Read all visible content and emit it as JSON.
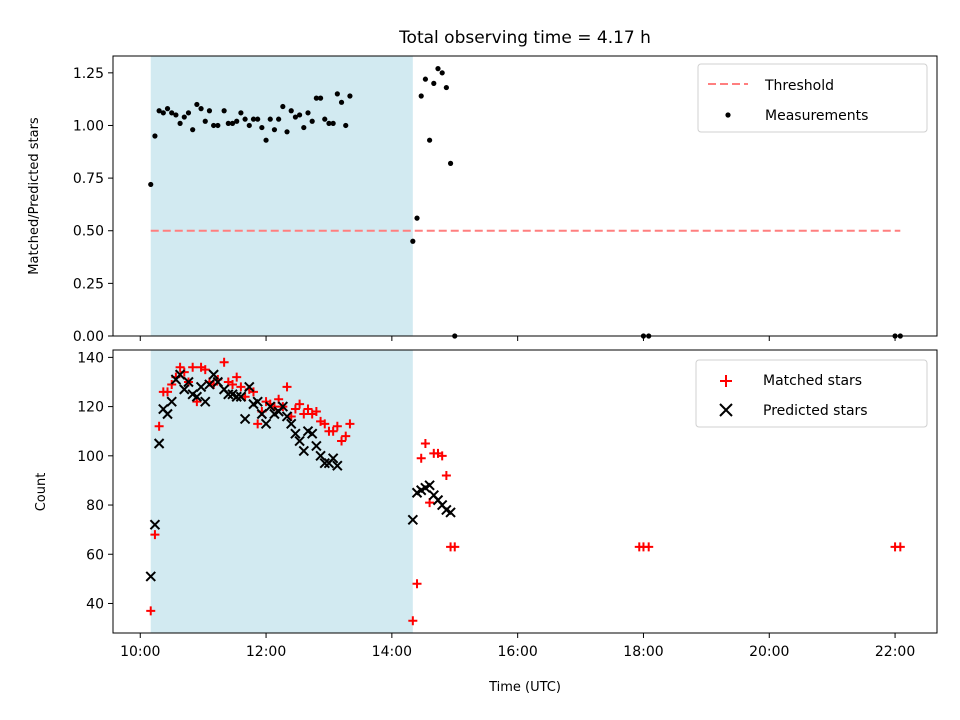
{
  "title": "Total observing time = 4.17 h",
  "chart_data": [
    {
      "type": "scatter",
      "ylabel": "Matched/Predicted stars",
      "xlim": [
        "09:34",
        "22:40"
      ],
      "ylim": [
        0,
        1.33
      ],
      "yticks": [
        0,
        0.25,
        0.5,
        0.75,
        1.0,
        1.25
      ],
      "ytick_labels": [
        "0.00",
        "0.25",
        "0.50",
        "0.75",
        "1.00",
        "1.25"
      ],
      "shaded_span": [
        "10:10",
        "14:20"
      ],
      "legend_position": "upper right",
      "threshold": {
        "name": "Threshold",
        "value": 0.5,
        "x": [
          "10:10",
          "22:05"
        ],
        "color": "#ff7f7f"
      },
      "series": [
        {
          "name": "Measurements",
          "color": "#000000",
          "points": [
            [
              "10:10",
              0.72
            ],
            [
              "10:14",
              0.95
            ],
            [
              "10:18",
              1.07
            ],
            [
              "10:22",
              1.06
            ],
            [
              "10:26",
              1.08
            ],
            [
              "10:30",
              1.06
            ],
            [
              "10:34",
              1.05
            ],
            [
              "10:38",
              1.01
            ],
            [
              "10:42",
              1.04
            ],
            [
              "10:46",
              1.06
            ],
            [
              "10:50",
              0.98
            ],
            [
              "10:54",
              1.1
            ],
            [
              "10:58",
              1.08
            ],
            [
              "11:02",
              1.02
            ],
            [
              "11:06",
              1.07
            ],
            [
              "11:10",
              1.0
            ],
            [
              "11:14",
              1.0
            ],
            [
              "11:20",
              1.07
            ],
            [
              "11:24",
              1.01
            ],
            [
              "11:28",
              1.01
            ],
            [
              "11:32",
              1.02
            ],
            [
              "11:36",
              1.06
            ],
            [
              "11:40",
              1.03
            ],
            [
              "11:44",
              1.0
            ],
            [
              "11:48",
              1.03
            ],
            [
              "11:52",
              1.03
            ],
            [
              "11:56",
              0.99
            ],
            [
              "12:00",
              0.93
            ],
            [
              "12:04",
              1.03
            ],
            [
              "12:08",
              0.98
            ],
            [
              "12:12",
              1.03
            ],
            [
              "12:16",
              1.09
            ],
            [
              "12:20",
              0.97
            ],
            [
              "12:24",
              1.07
            ],
            [
              "12:28",
              1.04
            ],
            [
              "12:32",
              1.05
            ],
            [
              "12:36",
              0.99
            ],
            [
              "12:40",
              1.06
            ],
            [
              "12:44",
              1.02
            ],
            [
              "12:48",
              1.13
            ],
            [
              "12:52",
              1.13
            ],
            [
              "12:56",
              1.03
            ],
            [
              "13:00",
              1.01
            ],
            [
              "13:04",
              1.01
            ],
            [
              "13:08",
              1.15
            ],
            [
              "13:12",
              1.11
            ],
            [
              "13:16",
              1.0
            ],
            [
              "13:20",
              1.14
            ],
            [
              "14:20",
              0.45
            ],
            [
              "14:24",
              0.56
            ],
            [
              "14:28",
              1.14
            ],
            [
              "14:32",
              1.22
            ],
            [
              "14:36",
              0.93
            ],
            [
              "14:40",
              1.2
            ],
            [
              "14:44",
              1.27
            ],
            [
              "14:48",
              1.25
            ],
            [
              "14:52",
              1.18
            ],
            [
              "14:56",
              0.82
            ],
            [
              "15:00",
              0.0
            ],
            [
              "18:00",
              0.0
            ],
            [
              "18:05",
              0.0
            ],
            [
              "22:00",
              0.0
            ],
            [
              "22:05",
              0.0
            ]
          ]
        }
      ]
    },
    {
      "type": "scatter",
      "xlabel": "Time (UTC)",
      "ylabel": "Count",
      "xlim": [
        "09:34",
        "22:40"
      ],
      "ylim": [
        28,
        143
      ],
      "yticks": [
        40,
        60,
        80,
        100,
        120,
        140
      ],
      "xticks": [
        "10:00",
        "12:00",
        "14:00",
        "16:00",
        "18:00",
        "20:00",
        "22:00"
      ],
      "shaded_span": [
        "10:10",
        "14:20"
      ],
      "legend_position": "upper right",
      "series": [
        {
          "name": "Matched stars",
          "color": "#ff0000",
          "marker": "plus",
          "points": [
            [
              "10:10",
              37
            ],
            [
              "10:14",
              68
            ],
            [
              "10:18",
              112
            ],
            [
              "10:22",
              126
            ],
            [
              "10:26",
              126
            ],
            [
              "10:30",
              129
            ],
            [
              "10:34",
              132
            ],
            [
              "10:38",
              136
            ],
            [
              "10:42",
              134
            ],
            [
              "10:46",
              130
            ],
            [
              "10:50",
              136
            ],
            [
              "10:54",
              122
            ],
            [
              "10:58",
              136
            ],
            [
              "11:02",
              135
            ],
            [
              "11:06",
              130
            ],
            [
              "11:10",
              129
            ],
            [
              "11:14",
              131
            ],
            [
              "11:20",
              138
            ],
            [
              "11:24",
              130
            ],
            [
              "11:28",
              129
            ],
            [
              "11:32",
              132
            ],
            [
              "11:36",
              128
            ],
            [
              "11:40",
              124
            ],
            [
              "11:44",
              127
            ],
            [
              "11:48",
              126
            ],
            [
              "11:52",
              113
            ],
            [
              "11:56",
              118
            ],
            [
              "12:00",
              122
            ],
            [
              "12:04",
              121
            ],
            [
              "12:08",
              120
            ],
            [
              "12:12",
              123
            ],
            [
              "12:16",
              120
            ],
            [
              "12:20",
              128
            ],
            [
              "12:24",
              116
            ],
            [
              "12:28",
              119
            ],
            [
              "12:32",
              121
            ],
            [
              "12:36",
              117
            ],
            [
              "12:40",
              119
            ],
            [
              "12:44",
              117
            ],
            [
              "12:48",
              118
            ],
            [
              "12:52",
              114
            ],
            [
              "12:56",
              113
            ],
            [
              "13:00",
              110
            ],
            [
              "13:04",
              110
            ],
            [
              "13:08",
              112
            ],
            [
              "13:12",
              106
            ],
            [
              "13:16",
              108
            ],
            [
              "13:20",
              113
            ],
            [
              "14:20",
              33
            ],
            [
              "14:24",
              48
            ],
            [
              "14:28",
              99
            ],
            [
              "14:32",
              105
            ],
            [
              "14:36",
              81
            ],
            [
              "14:40",
              101
            ],
            [
              "14:44",
              101
            ],
            [
              "14:48",
              100
            ],
            [
              "14:52",
              92
            ],
            [
              "14:56",
              63
            ],
            [
              "15:00",
              63
            ],
            [
              "17:56",
              63
            ],
            [
              "18:00",
              63
            ],
            [
              "18:05",
              63
            ],
            [
              "22:00",
              63
            ],
            [
              "22:05",
              63
            ]
          ]
        },
        {
          "name": "Predicted stars",
          "color": "#000000",
          "marker": "x",
          "points": [
            [
              "10:10",
              51
            ],
            [
              "10:14",
              72
            ],
            [
              "10:18",
              105
            ],
            [
              "10:22",
              119
            ],
            [
              "10:26",
              117
            ],
            [
              "10:30",
              122
            ],
            [
              "10:34",
              131
            ],
            [
              "10:38",
              133
            ],
            [
              "10:42",
              127
            ],
            [
              "10:46",
              130
            ],
            [
              "10:50",
              125
            ],
            [
              "10:54",
              124
            ],
            [
              "10:58",
              128
            ],
            [
              "11:02",
              122
            ],
            [
              "11:06",
              129
            ],
            [
              "11:10",
              133
            ],
            [
              "11:14",
              130
            ],
            [
              "11:20",
              127
            ],
            [
              "11:24",
              125
            ],
            [
              "11:28",
              125
            ],
            [
              "11:32",
              124
            ],
            [
              "11:36",
              124
            ],
            [
              "11:40",
              115
            ],
            [
              "11:44",
              128
            ],
            [
              "11:48",
              121
            ],
            [
              "11:52",
              122
            ],
            [
              "11:56",
              117
            ],
            [
              "12:00",
              113
            ],
            [
              "12:04",
              120
            ],
            [
              "12:08",
              117
            ],
            [
              "12:12",
              118
            ],
            [
              "12:16",
              120
            ],
            [
              "12:20",
              116
            ],
            [
              "12:24",
              113
            ],
            [
              "12:28",
              109
            ],
            [
              "12:32",
              106
            ],
            [
              "12:36",
              102
            ],
            [
              "12:40",
              110
            ],
            [
              "12:44",
              109
            ],
            [
              "12:48",
              104
            ],
            [
              "12:52",
              100
            ],
            [
              "12:56",
              97
            ],
            [
              "13:00",
              97
            ],
            [
              "13:04",
              99
            ],
            [
              "13:08",
              96
            ],
            [
              "14:20",
              74
            ],
            [
              "14:24",
              85
            ],
            [
              "14:28",
              86
            ],
            [
              "14:32",
              87
            ],
            [
              "14:36",
              88
            ],
            [
              "14:40",
              84
            ],
            [
              "14:44",
              82
            ],
            [
              "14:48",
              80
            ],
            [
              "14:52",
              78
            ],
            [
              "14:56",
              77
            ]
          ]
        }
      ]
    }
  ],
  "colors": {
    "shade": "#add8e6",
    "threshold": "#ff7f7f",
    "matched": "#ff0000",
    "predicted": "#000000",
    "measurements": "#000000"
  }
}
